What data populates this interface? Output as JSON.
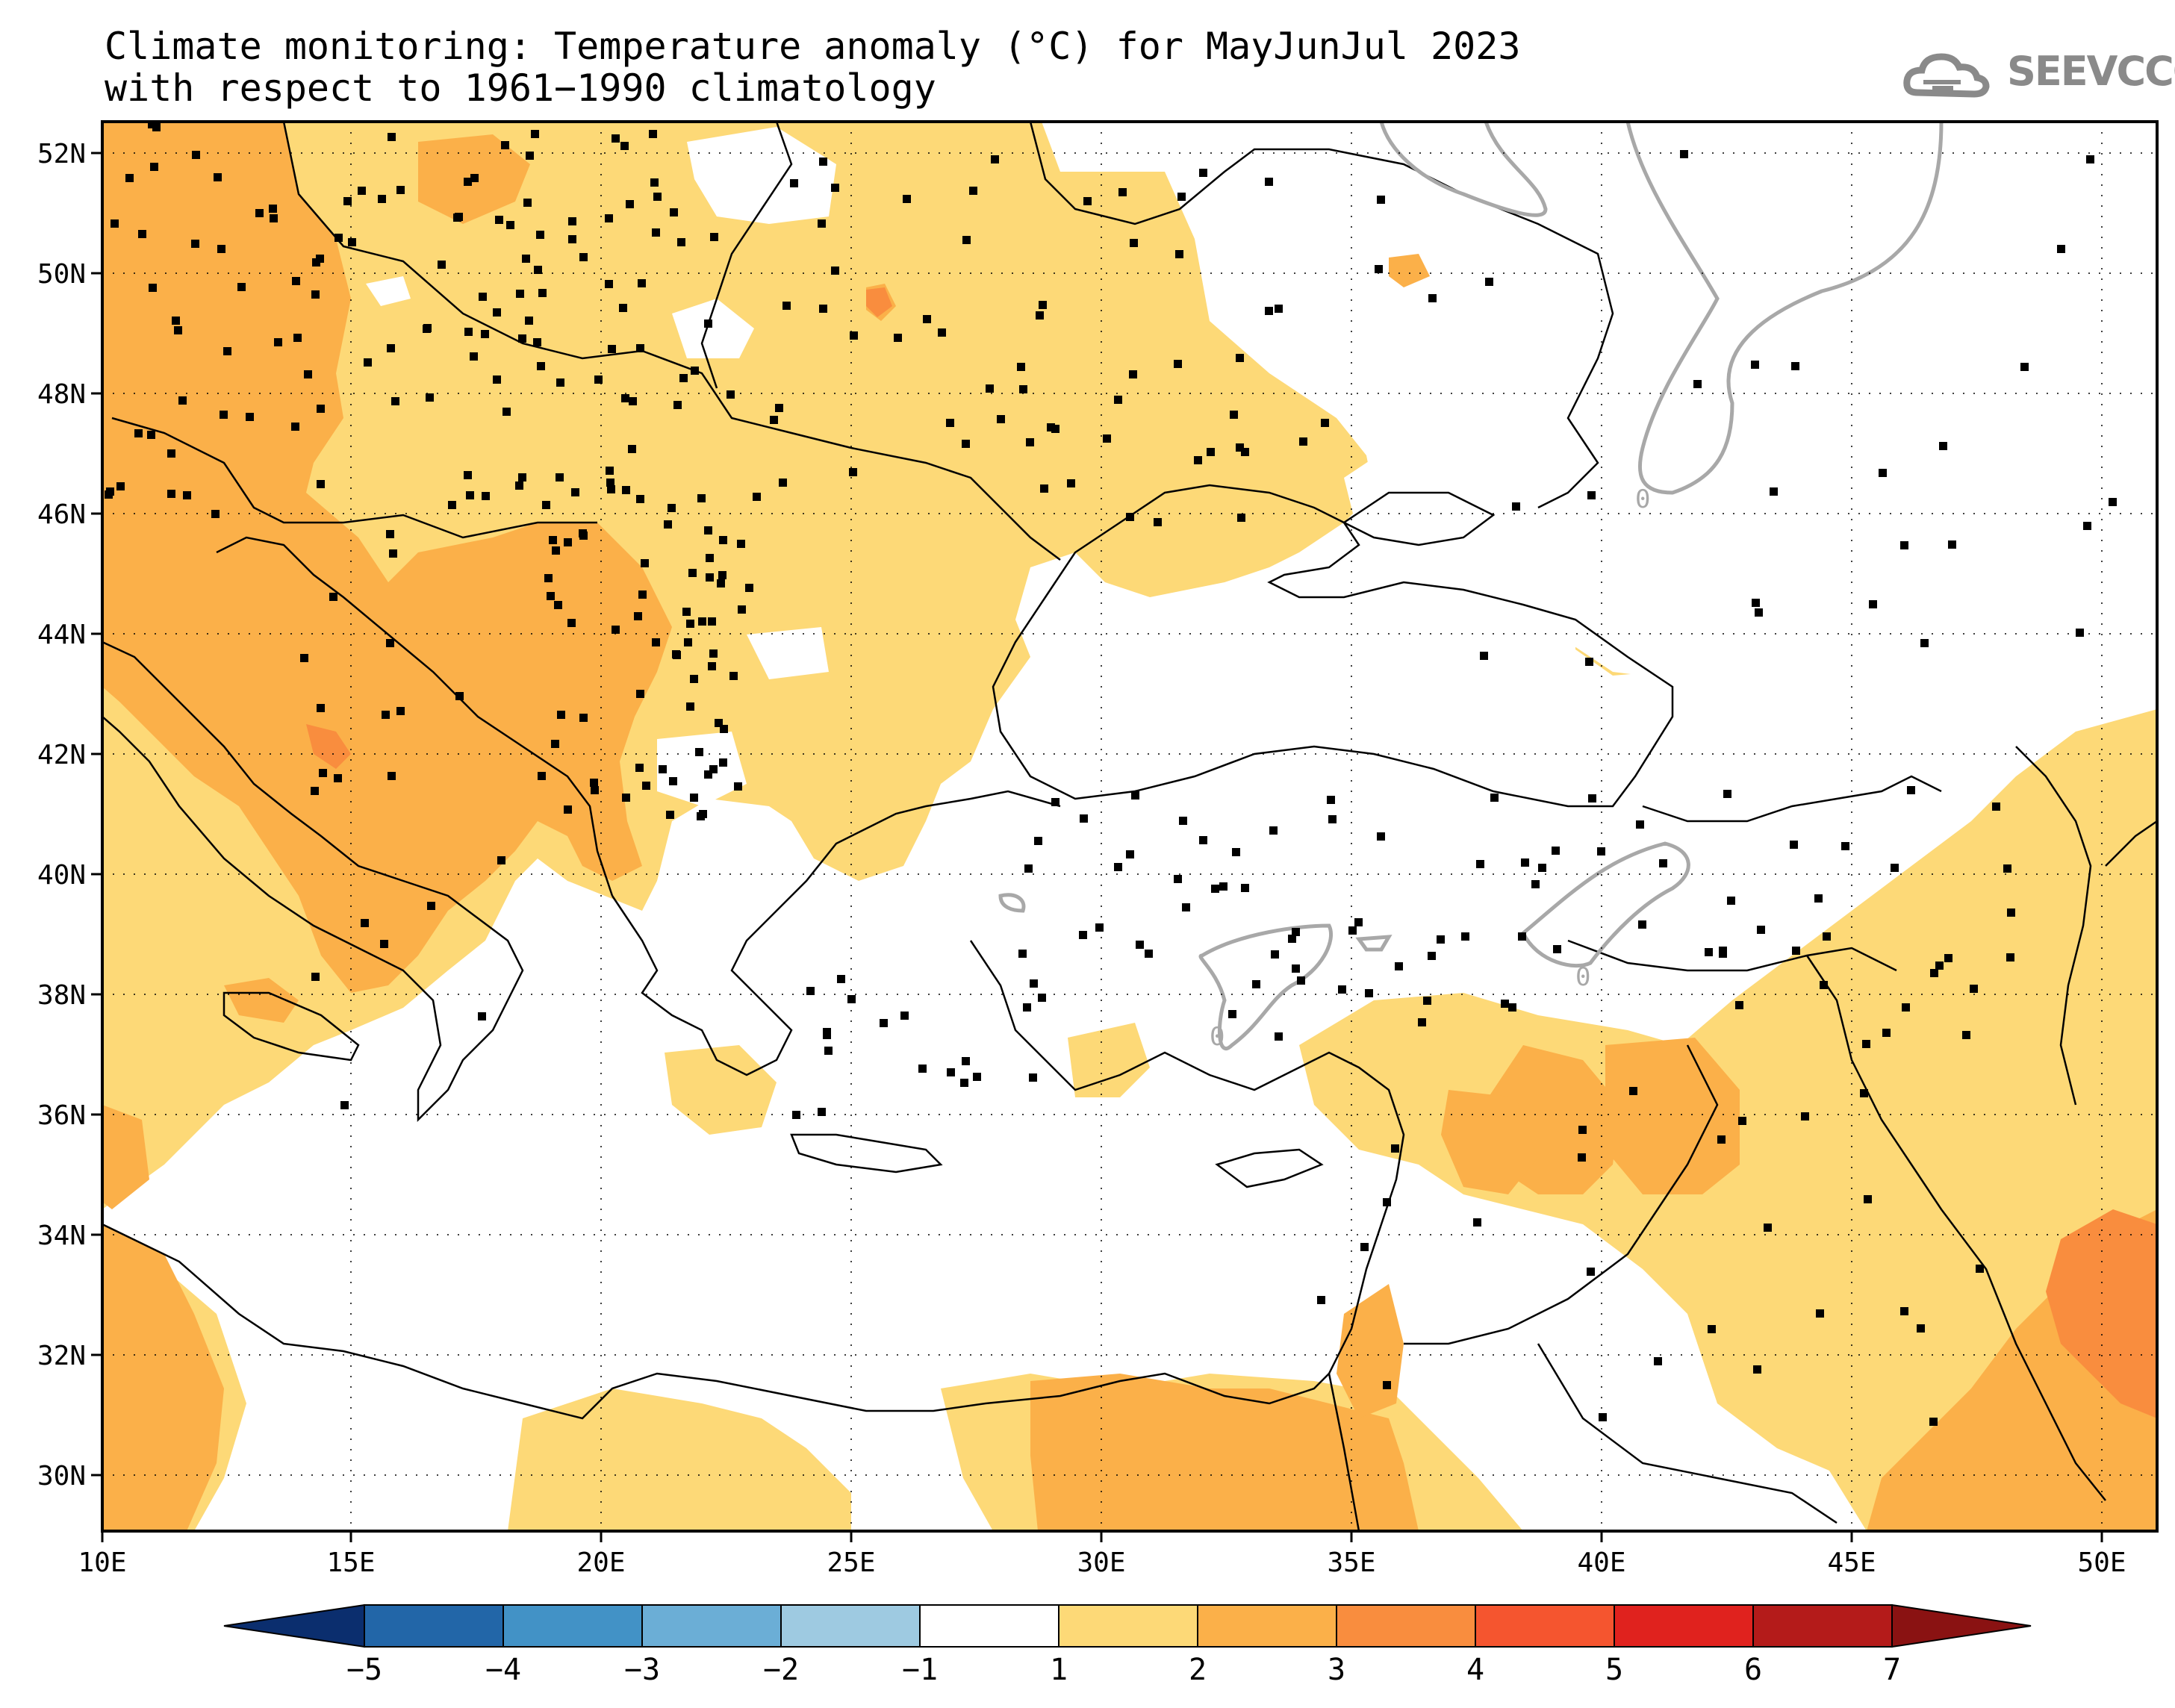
{
  "title_line1": "Climate monitoring: Temperature anomaly (°C) for MayJunJul 2023",
  "title_line2": "with respect to 1961−1990 climatology",
  "logo": {
    "text": "SEEVCCC",
    "icon": "cloud-logo-icon"
  },
  "map": {
    "lon_range": [
      10,
      51
    ],
    "lat_range": [
      29,
      52.5
    ],
    "lon_ticks": [
      "10E",
      "15E",
      "20E",
      "25E",
      "30E",
      "35E",
      "40E",
      "45E",
      "50E"
    ],
    "lat_ticks": [
      "52N",
      "50N",
      "48N",
      "46N",
      "44N",
      "42N",
      "40N",
      "38N",
      "36N",
      "34N",
      "32N",
      "30N"
    ],
    "contour_label": "0",
    "grid": "dotted",
    "station_markers": "black squares"
  },
  "colorbar": {
    "labels": [
      "−5",
      "−4",
      "−3",
      "−2",
      "−1",
      "1",
      "2",
      "3",
      "4",
      "5",
      "6",
      "7"
    ],
    "colors": [
      "#0b2e6e",
      "#2266a8",
      "#4292c6",
      "#6baed6",
      "#9ecae1",
      "#ffffff",
      "#fdd977",
      "#fbb049",
      "#f98d3e",
      "#f5552f",
      "#e0221e",
      "#b41b1a",
      "#8a1212"
    ]
  },
  "anomaly_colors": {
    "band_1_2": "#fdd977",
    "band_2_3": "#fbb049",
    "band_3_4": "#f98d3e",
    "contour": "#a8a8a8"
  }
}
